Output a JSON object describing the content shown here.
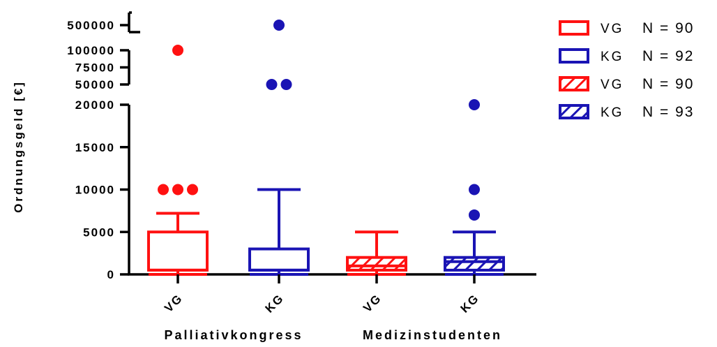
{
  "chart_data": {
    "type": "box",
    "ylabel": "Ordnungsgeld [€]",
    "y_axis": {
      "segments": [
        {
          "range": [
            0,
            20000
          ],
          "ticks": [
            {
              "v": 0,
              "label": "0"
            },
            {
              "v": 5000,
              "label": "5000"
            },
            {
              "v": 10000,
              "label": "10000"
            },
            {
              "v": 15000,
              "label": "15000"
            },
            {
              "v": 20000,
              "label": "20000"
            }
          ]
        },
        {
          "range": [
            50000,
            100000
          ],
          "ticks": [
            {
              "v": 50000,
              "label": "50000"
            },
            {
              "v": 75000,
              "label": "75000"
            },
            {
              "v": 100000,
              "label": "100000"
            }
          ]
        },
        {
          "range": [
            500000,
            500000
          ],
          "ticks": [
            {
              "v": 500000,
              "label": "500000"
            }
          ]
        }
      ]
    },
    "categories": [
      "VG",
      "KG",
      "VG",
      "KG"
    ],
    "groups": [
      {
        "label": "Palliativkongress",
        "categories": [
          0,
          1
        ]
      },
      {
        "label": "Medizinstudenten",
        "categories": [
          2,
          3
        ]
      }
    ],
    "series": [
      {
        "name": "VG",
        "n_label": "N = 90",
        "color": "#ff1111",
        "hatched": false,
        "whisker_low": 0,
        "q1": 500,
        "median": 500,
        "q3": 5000,
        "whisker_high": 7200,
        "outliers": [
          10000,
          10000,
          10000,
          100000
        ]
      },
      {
        "name": "KG",
        "n_label": "N = 92",
        "color": "#1a14b4",
        "hatched": false,
        "whisker_low": 0,
        "q1": 500,
        "median": 500,
        "q3": 3000,
        "whisker_high": 10000,
        "outliers": [
          50000,
          50000,
          500000
        ]
      },
      {
        "name": "VG",
        "n_label": "N = 90",
        "color": "#ff1111",
        "hatched": true,
        "whisker_low": 0,
        "q1": 500,
        "median": 1000,
        "q3": 2000,
        "whisker_high": 5000,
        "outliers": []
      },
      {
        "name": "KG",
        "n_label": "N = 93",
        "color": "#1a14b4",
        "hatched": true,
        "whisker_low": 0,
        "q1": 500,
        "median": 1500,
        "q3": 2000,
        "whisker_high": 5000,
        "outliers": [
          7000,
          10000,
          20000
        ]
      }
    ],
    "legend_position": "right",
    "grid": false
  }
}
